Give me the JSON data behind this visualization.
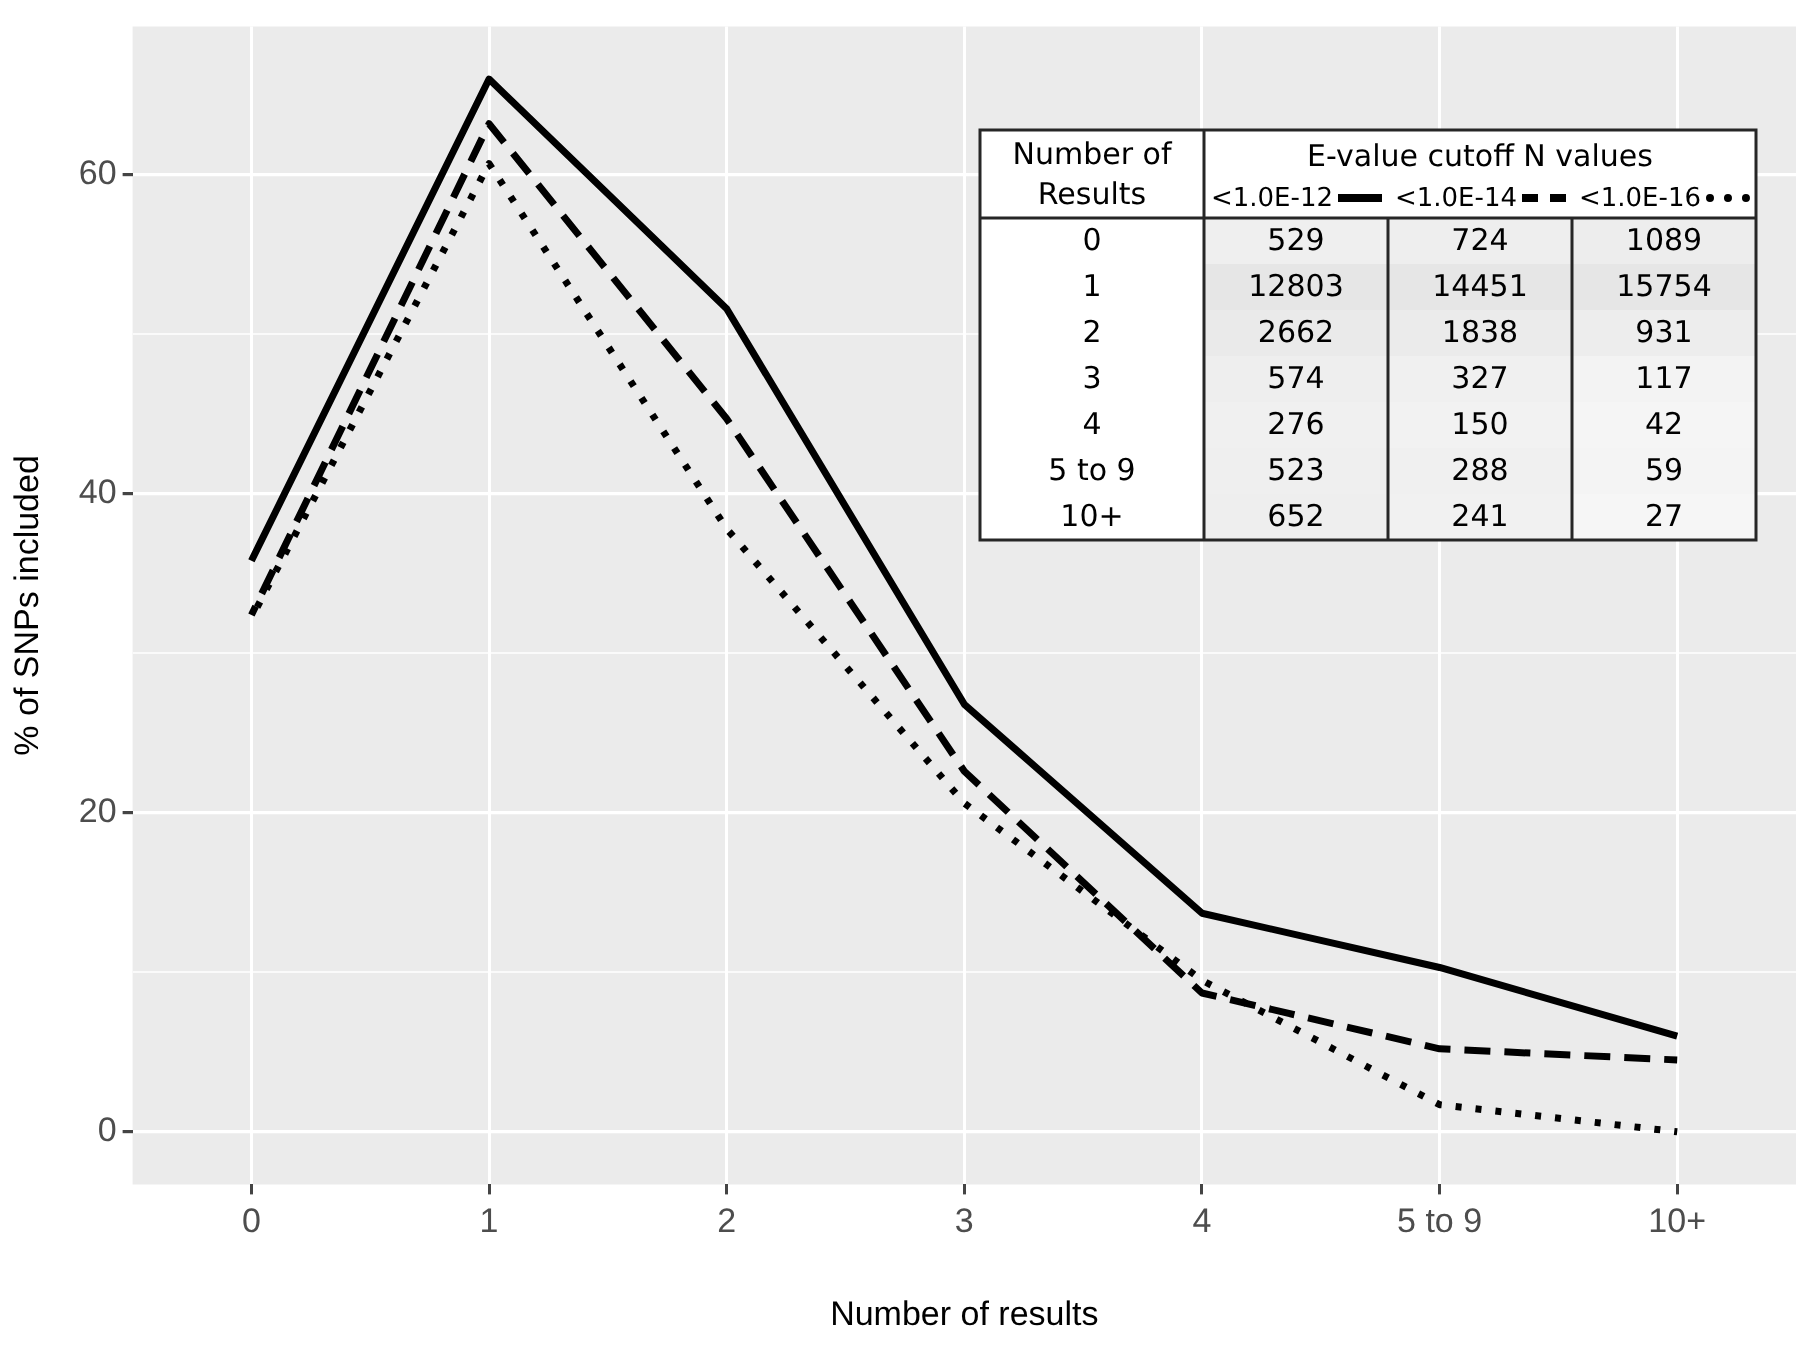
{
  "chart_data": [
    {
      "type": "line",
      "xlabel": "Number of results",
      "ylabel": "% of SNPs included",
      "categories": [
        "0",
        "1",
        "2",
        "3",
        "4",
        "5 to 9",
        "10+"
      ],
      "series": [
        {
          "color": "#000000",
          "line_style": "solid",
          "values": [
            35.8,
            66.0,
            51.6,
            26.8,
            13.7,
            10.3,
            6.0
          ]
        },
        {
          "color": "#000000",
          "line_style": "dashed",
          "values": [
            32.4,
            63.2,
            44.7,
            22.6,
            8.7,
            5.2,
            4.5
          ]
        },
        {
          "color": "#000000",
          "line_style": "dotted",
          "values": [
            32.2,
            60.7,
            37.8,
            20.6,
            9.5,
            1.7,
            0
          ]
        }
      ],
      "ylim": [
        -3.3,
        69.3
      ],
      "yticks": [
        0,
        {
          "value": 10,
          "label": null
        },
        20,
        {
          "value": 30,
          "label": null
        },
        40,
        {
          "value": 50,
          "label": null
        },
        60
      ],
      "grid": true,
      "marker": "none"
    },
    {
      "type": "heatmap",
      "title": "E-value cutoff N values",
      "ylabel": "Number of Results",
      "categories": [
        "<1.0E-12",
        "<1.0E-14",
        "<1.0E-16"
      ],
      "y_categories": [
        "0",
        "1",
        "2",
        "3",
        "4",
        "5 to 9",
        "10+"
      ],
      "cells": [
        [
          529,
          724,
          1089
        ],
        [
          12803,
          14451,
          15754
        ],
        [
          2662,
          1838,
          931
        ],
        [
          574,
          327,
          117
        ],
        [
          276,
          150,
          42
        ],
        [
          523,
          288,
          59
        ],
        [
          652,
          241,
          27
        ]
      ],
      "cell_labels": [
        [
          "529",
          "724",
          "1089"
        ],
        [
          "12803",
          "14451",
          "15754"
        ],
        [
          "2662",
          "1838",
          "931"
        ],
        [
          "574",
          "327",
          "117"
        ],
        [
          "276",
          "150",
          "42"
        ],
        [
          "523",
          "288",
          "59"
        ],
        [
          "652",
          "241",
          "27"
        ]
      ]
    }
  ]
}
